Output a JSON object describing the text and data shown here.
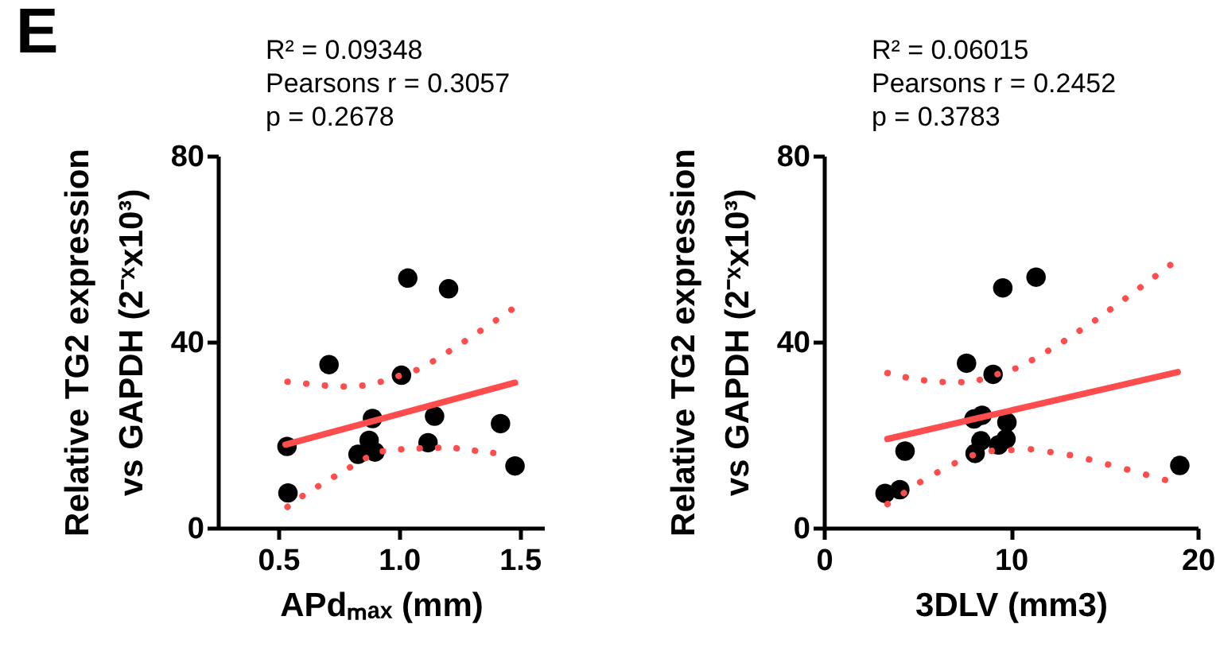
{
  "chart_data": [
    {
      "type": "scatter",
      "title": "E",
      "annotations": [
        "R² = 0.09348",
        "Pearsons r = 0.3057",
        "p = 0.2678"
      ],
      "xlabel": "APdₘₐₓ (mm)",
      "ylabel": [
        "Relative TG2 expression",
        "vs GAPDH  (2⁻ˣx10³)"
      ],
      "xlim": [
        0.25,
        1.6
      ],
      "xticks": [
        0.5,
        {
          "value": 1,
          "label": "1.0"
        },
        1.5
      ],
      "ylim": [
        0,
        80
      ],
      "yticks": [
        0,
        40,
        80
      ],
      "series": [
        {
          "marker": "circle",
          "color": "#000000",
          "x": [
            0.536,
            0.54,
            0.71,
            0.83,
            0.876,
            0.9,
            0.89,
            1.01,
            1.036,
            1.12,
            1.147,
            1.205,
            1.42,
            1.48
          ],
          "values": [
            17.5,
            7.5,
            35.1,
            15.8,
            18.8,
            16.3,
            23.5,
            32.8,
            53.7,
            18.3,
            24,
            51.4,
            22.4,
            13.3
          ]
        },
        {
          "type": "line",
          "color": "#ff4d4d",
          "line_style": "solid",
          "x": [
            0.53,
            1.48
          ],
          "values": [
            17.9,
            31.2
          ]
        },
        {
          "type": "line",
          "color": "#ff4d4d",
          "line_style": "dotted",
          "x": [
            0.538,
            0.71,
            0.81,
            0.9,
            1.077,
            1.158,
            1.31,
            1.465
          ],
          "values": [
            31.4,
            30.5,
            30.3,
            31,
            34,
            36.3,
            41.4,
            46.9
          ]
        },
        {
          "type": "line",
          "color": "#ff4d4d",
          "line_style": "dotted",
          "x": [
            0.538,
            0.61,
            0.77,
            0.906,
            1.03,
            1.21,
            1.39
          ],
          "values": [
            4.5,
            7.2,
            12.2,
            16.3,
            17,
            17.3,
            16.1
          ]
        }
      ]
    },
    {
      "type": "scatter",
      "annotations": [
        "R² = 0.06015",
        "Pearsons r = 0.2452",
        "p = 0.3783"
      ],
      "xlabel": "3DLV (mm3)",
      "ylabel": [
        "Relative TG2 expression",
        "vs GAPDH  (2⁻ˣx10³)"
      ],
      "xlim": [
        0,
        20
      ],
      "xticks": [
        0,
        10,
        20
      ],
      "ylim": [
        0,
        80
      ],
      "yticks": [
        0,
        40,
        80
      ],
      "series": [
        {
          "marker": "circle",
          "color": "#000000",
          "x": [
            3.27,
            4.06,
            4.34,
            7.63,
            8.09,
            8.03,
            8.46,
            8.4,
            9.05,
            9.57,
            9.34,
            9.74,
            9.79,
            11.35,
            19.04
          ],
          "values": [
            7.4,
            8.2,
            16.5,
            35.4,
            16,
            23.4,
            24.2,
            18.7,
            33,
            51.6,
            17.8,
            19.1,
            22.7,
            53.9,
            13.4
          ]
        },
        {
          "type": "line",
          "color": "#ff4d4d",
          "line_style": "solid",
          "x": [
            3.4,
            18.93
          ],
          "values": [
            19.1,
            33.5
          ]
        },
        {
          "type": "line",
          "color": "#ff4d4d",
          "line_style": "dotted",
          "x": [
            3.4,
            4.54,
            5.74,
            6.95,
            8.17,
            10.5,
            12.57,
            14.61,
            16.6,
            18.53
          ],
          "values": [
            33.3,
            32.2,
            31.5,
            31.2,
            31.6,
            34.6,
            39.4,
            44.9,
            50.7,
            56.5
          ]
        },
        {
          "type": "line",
          "color": "#ff4d4d",
          "line_style": "dotted",
          "x": [
            3.4,
            5.36,
            6.44,
            7.52,
            8.6,
            11.15,
            13.53,
            15.89,
            18.25
          ],
          "values": [
            5.1,
            10.4,
            12.7,
            15,
            16.5,
            16.9,
            15.4,
            12.9,
            10.3
          ]
        }
      ]
    }
  ]
}
